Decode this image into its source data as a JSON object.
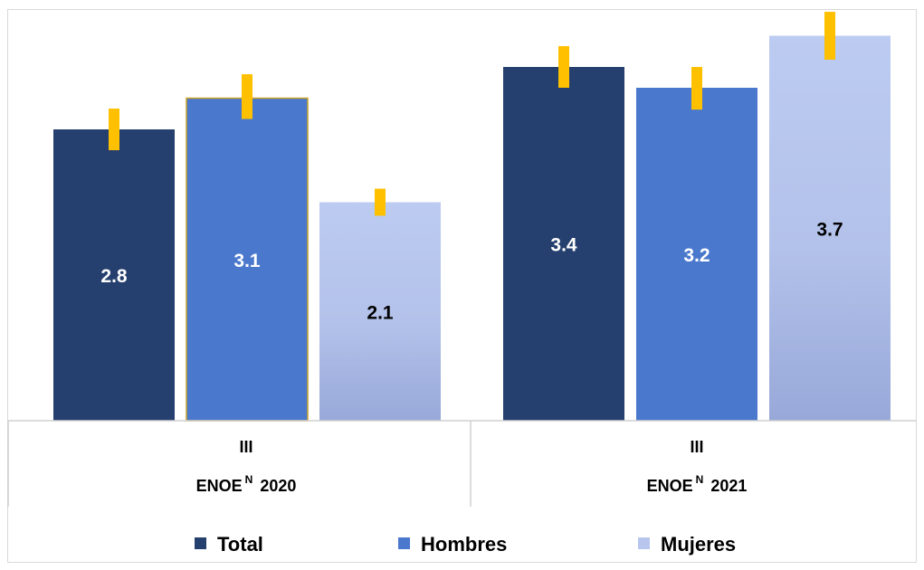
{
  "chart_data": {
    "type": "bar",
    "groups": [
      {
        "quarter": "III",
        "survey": "ENOE",
        "superscript": "N",
        "year": "2020"
      },
      {
        "quarter": "III",
        "survey": "ENOE",
        "superscript": "N",
        "year": "2021"
      }
    ],
    "series": [
      {
        "name": "Total",
        "values": [
          2.8,
          3.4
        ],
        "labels": [
          "2.8",
          "3.4"
        ],
        "color": "#253f6e",
        "error_low": [
          2.6,
          3.2
        ],
        "error_high": [
          3.0,
          3.6
        ]
      },
      {
        "name": "Hombres",
        "values": [
          3.1,
          3.2
        ],
        "labels": [
          "3.1",
          "3.2"
        ],
        "color": "#4a78cd",
        "error_low": [
          2.9,
          2.99
        ],
        "error_high": [
          3.33,
          3.4
        ]
      },
      {
        "name": "Mujeres",
        "values": [
          2.1,
          3.7
        ],
        "labels": [
          "2.1",
          "3.7"
        ],
        "color": "#b8c6ee",
        "error_low": [
          1.97,
          3.47
        ],
        "error_high": [
          2.23,
          3.93
        ]
      }
    ],
    "error_bar_color": "#ffc000",
    "ylim": [
      0,
      4.0
    ],
    "grid": false,
    "legend_position": "bottom"
  }
}
